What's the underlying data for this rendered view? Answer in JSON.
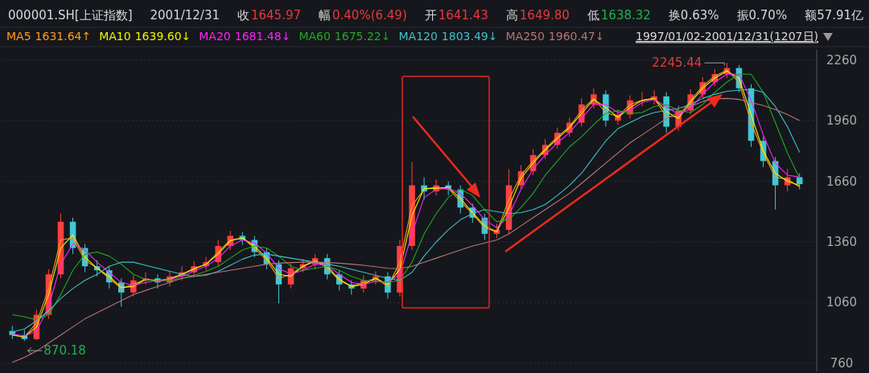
{
  "chart_data": {
    "type": "candlestick",
    "categories": [
      null,
      null,
      null,
      null,
      null,
      null,
      null,
      null,
      null,
      null,
      null,
      null,
      null,
      null,
      null,
      null,
      null,
      null,
      null,
      null,
      null,
      null,
      null,
      null,
      null,
      null,
      null,
      null,
      null,
      null,
      null,
      null,
      null,
      null,
      null,
      null,
      null,
      null,
      null,
      null,
      null,
      null,
      null,
      null,
      null,
      null,
      null,
      null,
      null,
      null,
      null,
      null,
      null,
      null,
      null,
      null,
      null,
      null,
      null,
      null,
      null,
      null,
      null,
      null,
      null,
      null
    ],
    "ohlc": [
      [
        920,
        945,
        880,
        900
      ],
      [
        900,
        925,
        870.18,
        880
      ],
      [
        880,
        1025,
        875,
        1000
      ],
      [
        1000,
        1225,
        980,
        1200
      ],
      [
        1200,
        1500,
        1180,
        1460
      ],
      [
        1460,
        1480,
        1300,
        1330
      ],
      [
        1330,
        1350,
        1210,
        1240
      ],
      [
        1240,
        1270,
        1190,
        1220
      ],
      [
        1220,
        1240,
        1130,
        1160
      ],
      [
        1160,
        1180,
        1040,
        1110
      ],
      [
        1110,
        1195,
        1090,
        1170
      ],
      [
        1170,
        1210,
        1150,
        1180
      ],
      [
        1180,
        1200,
        1130,
        1160
      ],
      [
        1160,
        1215,
        1140,
        1190
      ],
      [
        1190,
        1240,
        1170,
        1210
      ],
      [
        1210,
        1265,
        1190,
        1240
      ],
      [
        1240,
        1285,
        1220,
        1260
      ],
      [
        1260,
        1370,
        1240,
        1340
      ],
      [
        1340,
        1415,
        1320,
        1390
      ],
      [
        1390,
        1410,
        1345,
        1370
      ],
      [
        1370,
        1390,
        1285,
        1310
      ],
      [
        1310,
        1330,
        1225,
        1250
      ],
      [
        1250,
        1270,
        1056,
        1150
      ],
      [
        1150,
        1255,
        1130,
        1230
      ],
      [
        1230,
        1275,
        1210,
        1250
      ],
      [
        1250,
        1300,
        1225,
        1280
      ],
      [
        1280,
        1300,
        1175,
        1200
      ],
      [
        1200,
        1220,
        1120,
        1150
      ],
      [
        1150,
        1170,
        1100,
        1130
      ],
      [
        1130,
        1195,
        1110,
        1170
      ],
      [
        1170,
        1215,
        1150,
        1190
      ],
      [
        1190,
        1210,
        1080,
        1110
      ],
      [
        1110,
        1370,
        1090,
        1340
      ],
      [
        1340,
        1755,
        1320,
        1640
      ],
      [
        1640,
        1680,
        1570,
        1610
      ],
      [
        1610,
        1670,
        1590,
        1640
      ],
      [
        1640,
        1660,
        1590,
        1620
      ],
      [
        1620,
        1640,
        1500,
        1530
      ],
      [
        1530,
        1550,
        1455,
        1480
      ],
      [
        1480,
        1500,
        1370,
        1400
      ],
      [
        1400,
        1450,
        1380,
        1420
      ],
      [
        1420,
        1720,
        1400,
        1640
      ],
      [
        1640,
        1740,
        1620,
        1710
      ],
      [
        1710,
        1820,
        1690,
        1790
      ],
      [
        1790,
        1870,
        1770,
        1840
      ],
      [
        1840,
        1925,
        1820,
        1900
      ],
      [
        1900,
        1975,
        1880,
        1950
      ],
      [
        1950,
        2070,
        1930,
        2040
      ],
      [
        2040,
        2120,
        2020,
        2090
      ],
      [
        2090,
        2110,
        1930,
        1960
      ],
      [
        1960,
        2015,
        1940,
        1990
      ],
      [
        1990,
        2085,
        1970,
        2060
      ],
      [
        2060,
        2100,
        2030,
        2060
      ],
      [
        2060,
        2110,
        2040,
        2080
      ],
      [
        2080,
        2100,
        1900,
        1930
      ],
      [
        1930,
        2035,
        1910,
        2010
      ],
      [
        2010,
        2115,
        1990,
        2090
      ],
      [
        2090,
        2175,
        2070,
        2150
      ],
      [
        2150,
        2215,
        2130,
        2190
      ],
      [
        2190,
        2245.44,
        2170,
        2220
      ],
      [
        2220,
        2235,
        2100,
        2120
      ],
      [
        2120,
        2140,
        1830,
        1860
      ],
      [
        1860,
        1880,
        1730,
        1760
      ],
      [
        1760,
        1780,
        1520,
        1640
      ],
      [
        1640,
        1720,
        1610,
        1680
      ],
      [
        1680,
        1700,
        1620,
        1645.97
      ]
    ],
    "colors": [
      "#3fc8d8",
      "#3fc8d8",
      "#ff4040",
      "#ff4040",
      "#ff4040",
      "#3fc8d8",
      "#3fc8d8",
      "#3fc8d8",
      "#3fc8d8",
      "#3fc8d8",
      "#ff4040",
      "#ff4040",
      "#3fc8d8",
      "#ff4040",
      "#ff4040",
      "#ff4040",
      "#ff4040",
      "#ff4040",
      "#ff4040",
      "#3fc8d8",
      "#3fc8d8",
      "#3fc8d8",
      "#3fc8d8",
      "#ff4040",
      "#ff4040",
      "#ff4040",
      "#3fc8d8",
      "#3fc8d8",
      "#3fc8d8",
      "#ff4040",
      "#ff4040",
      "#3fc8d8",
      "#ff4040",
      "#ff4040",
      "#3fc8d8",
      "#ff4040",
      "#3fc8d8",
      "#3fc8d8",
      "#3fc8d8",
      "#3fc8d8",
      "#ff4040",
      "#ff4040",
      "#ff4040",
      "#ff4040",
      "#ff4040",
      "#ff4040",
      "#ff4040",
      "#ff4040",
      "#ff4040",
      "#3fc8d8",
      "#ff4040",
      "#ff4040",
      "#ff4040",
      "#ff4040",
      "#3fc8d8",
      "#ff4040",
      "#ff4040",
      "#ff4040",
      "#ff4040",
      "#ff4040",
      "#3fc8d8",
      "#3fc8d8",
      "#3fc8d8",
      "#3fc8d8",
      "#ff4040",
      "#3fc8d8"
    ],
    "series": [
      {
        "name": "MA5",
        "type": "line",
        "color": "#ff9a1a",
        "values": [
          900,
          890,
          960,
          1130,
          1370,
          1380,
          1270,
          1230,
          1180,
          1130,
          1150,
          1175,
          1165,
          1180,
          1200,
          1230,
          1250,
          1310,
          1370,
          1380,
          1330,
          1270,
          1180,
          1200,
          1240,
          1270,
          1230,
          1170,
          1140,
          1160,
          1180,
          1140,
          1260,
          1540,
          1620,
          1630,
          1625,
          1560,
          1500,
          1430,
          1410,
          1570,
          1690,
          1760,
          1820,
          1880,
          1930,
          2010,
          2070,
          2000,
          1980,
          2040,
          2060,
          2070,
          1980,
          1980,
          2060,
          2130,
          2180,
          2210,
          2150,
          1950,
          1800,
          1680,
          1670,
          1631.64
        ]
      },
      {
        "name": "MA10",
        "type": "line",
        "color": "#f0f000",
        "values": [
          900,
          890,
          940,
          1100,
          1330,
          1395,
          1285,
          1230,
          1190,
          1135,
          1140,
          1175,
          1170,
          1175,
          1200,
          1225,
          1250,
          1300,
          1365,
          1380,
          1340,
          1280,
          1200,
          1190,
          1240,
          1265,
          1240,
          1175,
          1140,
          1150,
          1180,
          1150,
          1225,
          1490,
          1625,
          1625,
          1630,
          1575,
          1505,
          1440,
          1410,
          1530,
          1675,
          1750,
          1815,
          1870,
          1925,
          1995,
          2065,
          2025,
          1975,
          2025,
          2060,
          2070,
          2005,
          1970,
          2050,
          2120,
          2170,
          2205,
          2170,
          1990,
          1810,
          1700,
          1660,
          1639.6
        ]
      },
      {
        "name": "MA20",
        "type": "line",
        "color": "#ff20ff",
        "values": [
          905,
          895,
          920,
          1040,
          1250,
          1350,
          1320,
          1260,
          1210,
          1160,
          1145,
          1160,
          1170,
          1175,
          1190,
          1215,
          1240,
          1280,
          1340,
          1370,
          1355,
          1305,
          1230,
          1200,
          1220,
          1250,
          1245,
          1200,
          1160,
          1150,
          1165,
          1160,
          1200,
          1400,
          1580,
          1620,
          1625,
          1600,
          1540,
          1470,
          1430,
          1490,
          1620,
          1720,
          1790,
          1850,
          1900,
          1970,
          2040,
          2040,
          2000,
          2010,
          2050,
          2065,
          2030,
          1990,
          2020,
          2090,
          2150,
          2190,
          2190,
          2060,
          1890,
          1750,
          1690,
          1681.48
        ]
      },
      {
        "name": "MA60",
        "type": "line",
        "color": "#22a822",
        "values": [
          1000,
          990,
          975,
          1000,
          1100,
          1220,
          1300,
          1310,
          1290,
          1250,
          1200,
          1175,
          1165,
          1170,
          1180,
          1195,
          1215,
          1240,
          1280,
          1320,
          1340,
          1330,
          1290,
          1240,
          1220,
          1230,
          1240,
          1220,
          1190,
          1170,
          1165,
          1160,
          1170,
          1260,
          1400,
          1500,
          1580,
          1620,
          1590,
          1520,
          1460,
          1470,
          1530,
          1600,
          1690,
          1760,
          1830,
          1880,
          1940,
          1995,
          2010,
          1995,
          2000,
          2030,
          2040,
          2010,
          2000,
          2040,
          2100,
          2150,
          2190,
          2190,
          2100,
          1950,
          1800,
          1675.22
        ]
      },
      {
        "name": "MA120",
        "type": "line",
        "color": "#40c0c8",
        "values": [
          915,
          930,
          970,
          1020,
          1080,
          1130,
          1170,
          1200,
          1240,
          1260,
          1260,
          1245,
          1230,
          1215,
          1200,
          1190,
          1195,
          1215,
          1245,
          1275,
          1295,
          1300,
          1290,
          1280,
          1270,
          1260,
          1250,
          1240,
          1225,
          1210,
          1195,
          1180,
          1170,
          1210,
          1290,
          1360,
          1420,
          1470,
          1500,
          1520,
          1510,
          1500,
          1505,
          1520,
          1545,
          1590,
          1640,
          1700,
          1780,
          1860,
          1920,
          1950,
          1980,
          2000,
          2010,
          2020,
          2040,
          2070,
          2090,
          2105,
          2110,
          2115,
          2100,
          2030,
          1930,
          1803.49
        ]
      },
      {
        "name": "MA250",
        "type": "line",
        "color": "#b87474",
        "values": [
          765,
          790,
          820,
          860,
          900,
          940,
          980,
          1010,
          1040,
          1070,
          1100,
          1120,
          1140,
          1160,
          1180,
          1190,
          1200,
          1210,
          1220,
          1230,
          1240,
          1250,
          1255,
          1258,
          1260,
          1260,
          1258,
          1255,
          1250,
          1245,
          1238,
          1230,
          1228,
          1240,
          1260,
          1280,
          1300,
          1320,
          1340,
          1355,
          1370,
          1400,
          1440,
          1480,
          1520,
          1560,
          1600,
          1650,
          1700,
          1750,
          1800,
          1850,
          1890,
          1930,
          1970,
          2000,
          2030,
          2055,
          2068,
          2070,
          2065,
          2050,
          2035,
          2015,
          1990,
          1960.47
        ]
      }
    ],
    "ylim": [
      720,
      2310
    ],
    "yticks": [
      760,
      1060,
      1360,
      1660,
      1960,
      2260
    ],
    "grid": "y",
    "legend": "top left",
    "annotations": [
      "000001.SH[上证指数]",
      "2001/12/31",
      "收",
      "1645.97",
      "幅",
      "0.40%(6.49)",
      "开",
      "1641.43",
      "高",
      "1649.80",
      "低",
      "1638.32",
      "换0.63%",
      "振0.70%",
      "额57.91亿",
      "1631.64↑",
      "1639.60↓",
      "1681.48↓",
      "1675.22↓",
      "1803.49↓",
      "1960.47↓",
      "1997/01/02-2001/12/31(1207日)",
      "2245.44",
      "870.18"
    ]
  }
}
